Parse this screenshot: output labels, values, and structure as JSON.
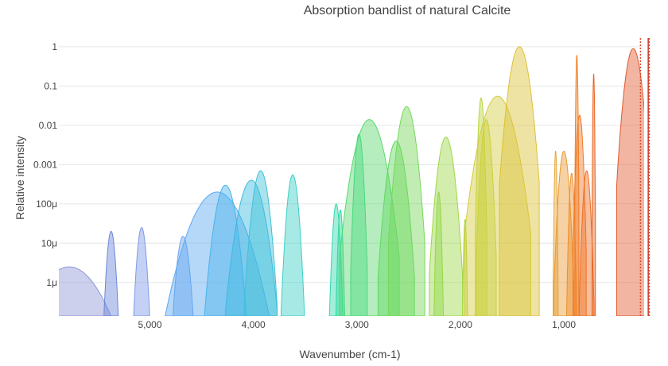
{
  "chart_data": {
    "type": "area",
    "title": "Absorption bandlist of natural Calcite",
    "xlabel": "Wavenumber (cm-1)",
    "ylabel": "Relative intensity",
    "x_reversed": true,
    "xlim": [
      5880,
      240
    ],
    "x_ticks": [
      5000,
      4000,
      3000,
      2000,
      1000
    ],
    "x_tick_labels": [
      "5,000",
      "4,000",
      "3,000",
      "2,000",
      "1,000"
    ],
    "y_scale": "log",
    "ylim": [
      1.4e-07,
      2
    ],
    "y_ticks": [
      1,
      0.1,
      0.01,
      0.001,
      0.0001,
      1e-05,
      1e-06
    ],
    "y_tick_labels": [
      "1",
      "0.1",
      "0.01",
      "0.001",
      "100μ",
      "10μ",
      "1μ"
    ],
    "grid": true,
    "bands": [
      {
        "center": 5780,
        "width": 420,
        "peak": 2.5e-06,
        "color": "#8e96d8"
      },
      {
        "center": 5375,
        "width": 55,
        "peak": 2e-05,
        "color": "#6b86d8"
      },
      {
        "center": 5080,
        "width": 60,
        "peak": 2.5e-05,
        "color": "#7d9ae8"
      },
      {
        "center": 4680,
        "width": 80,
        "peak": 1.5e-05,
        "color": "#6fa3ee"
      },
      {
        "center": 4350,
        "width": 330,
        "peak": 0.0002,
        "color": "#5aa8f0"
      },
      {
        "center": 4270,
        "width": 130,
        "peak": 0.0003,
        "color": "#48b4ea"
      },
      {
        "center": 4020,
        "width": 160,
        "peak": 0.0004,
        "color": "#3bbbe0"
      },
      {
        "center": 3930,
        "width": 100,
        "peak": 0.0007,
        "color": "#40c0d8"
      },
      {
        "center": 3620,
        "width": 70,
        "peak": 0.00055,
        "color": "#3ccfc6"
      },
      {
        "center": 3200,
        "width": 45,
        "peak": 0.0001,
        "color": "#33d8b0"
      },
      {
        "center": 3160,
        "width": 30,
        "peak": 7e-05,
        "color": "#30da9e"
      },
      {
        "center": 2980,
        "width": 50,
        "peak": 0.006,
        "color": "#3ad98a"
      },
      {
        "center": 2880,
        "width": 180,
        "peak": 0.014,
        "color": "#5ad870"
      },
      {
        "center": 2620,
        "width": 110,
        "peak": 0.004,
        "color": "#62d860"
      },
      {
        "center": 2520,
        "width": 110,
        "peak": 0.03,
        "color": "#75d85a"
      },
      {
        "center": 2210,
        "width": 30,
        "peak": 0.0002,
        "color": "#8ad84a"
      },
      {
        "center": 2140,
        "width": 100,
        "peak": 0.005,
        "color": "#9cd848"
      },
      {
        "center": 1955,
        "width": 18,
        "peak": 4e-05,
        "color": "#a8d640"
      },
      {
        "center": 1800,
        "width": 35,
        "peak": 0.05,
        "color": "#b8d63c"
      },
      {
        "center": 1750,
        "width": 60,
        "peak": 0.014,
        "color": "#c4d43a"
      },
      {
        "center": 1640,
        "width": 200,
        "peak": 0.055,
        "color": "#d4cc40"
      },
      {
        "center": 1430,
        "width": 120,
        "peak": 1.0,
        "color": "#dcc035"
      },
      {
        "center": 1080,
        "width": 15,
        "peak": 0.0022,
        "color": "#e6a83a"
      },
      {
        "center": 1000,
        "width": 60,
        "peak": 0.0022,
        "color": "#e99a32"
      },
      {
        "center": 925,
        "width": 30,
        "peak": 0.0006,
        "color": "#ec8e2e"
      },
      {
        "center": 875,
        "width": 12,
        "peak": 0.6,
        "color": "#ee8228"
      },
      {
        "center": 848,
        "width": 40,
        "peak": 0.018,
        "color": "#ef7a28"
      },
      {
        "center": 780,
        "width": 45,
        "peak": 0.0007,
        "color": "#ee7026"
      },
      {
        "center": 712,
        "width": 10,
        "peak": 0.2,
        "color": "#e96624"
      },
      {
        "center": 330,
        "width": 100,
        "peak": 0.9,
        "color": "#e05a30"
      }
    ],
    "line_markers": [
      {
        "x": 260,
        "color": "#d84a2a",
        "style": "dotted"
      },
      {
        "x": 185,
        "color": "#c83a2a",
        "style": "solid"
      },
      {
        "x": 175,
        "color": "#d84a2a",
        "style": "dotted"
      }
    ]
  }
}
